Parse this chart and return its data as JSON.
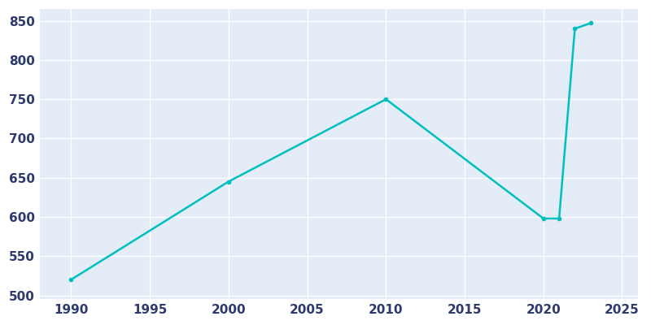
{
  "years": [
    1990,
    2000,
    2010,
    2020,
    2021,
    2022,
    2023
  ],
  "population": [
    520,
    645,
    750,
    598,
    598,
    840,
    847
  ],
  "line_color": "#00BFBF",
  "bg_color": "#E4ECF7",
  "fig_bg_color": "#FFFFFF",
  "grid_color": "#FFFFFF",
  "xlim": [
    1988,
    2026
  ],
  "ylim": [
    495,
    865
  ],
  "xticks": [
    1990,
    1995,
    2000,
    2005,
    2010,
    2015,
    2020,
    2025
  ],
  "yticks": [
    500,
    550,
    600,
    650,
    700,
    750,
    800,
    850
  ],
  "tick_label_color": "#2E3A6E",
  "tick_fontsize": 11,
  "linewidth": 1.8
}
